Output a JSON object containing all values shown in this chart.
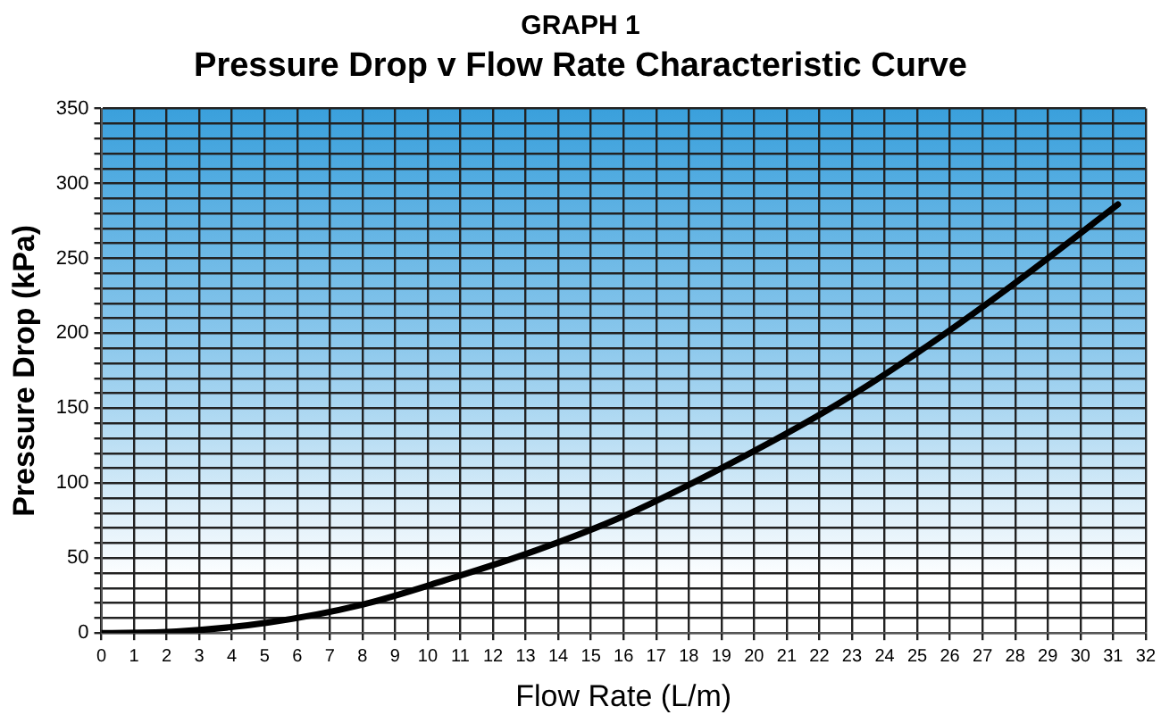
{
  "chart_data": {
    "type": "line",
    "title": "GRAPH 1",
    "subtitle": "Pressure Drop v Flow Rate Characteristic Curve",
    "xlabel": "Flow Rate (L/m)",
    "ylabel": "Pressure Drop (kPa)",
    "series": [
      {
        "color": "#000000",
        "x": [
          0,
          2.3,
          5.1,
          8,
          10.5,
          13.3,
          16,
          19.7,
          22.5,
          25,
          27.9,
          31.15
        ],
        "values": [
          0,
          1,
          7,
          19,
          35,
          55,
          78,
          118,
          152,
          187,
          232,
          286
        ]
      }
    ],
    "xlim": [
      0,
      32
    ],
    "xticks": [
      0,
      1,
      2,
      3,
      4,
      5,
      6,
      7,
      8,
      9,
      10,
      11,
      12,
      13,
      14,
      15,
      16,
      17,
      18,
      19,
      20,
      21,
      22,
      23,
      24,
      25,
      26,
      27,
      28,
      29,
      30,
      31,
      32
    ],
    "ylim": [
      0,
      350
    ],
    "yticks": [
      0,
      {
        "value": 10,
        "label": null
      },
      {
        "value": 20,
        "label": null
      },
      {
        "value": 30,
        "label": null
      },
      {
        "value": 40,
        "label": null
      },
      50,
      {
        "value": 60,
        "label": null
      },
      {
        "value": 70,
        "label": null
      },
      {
        "value": 80,
        "label": null
      },
      {
        "value": 90,
        "label": null
      },
      100,
      {
        "value": 110,
        "label": null
      },
      {
        "value": 120,
        "label": null
      },
      {
        "value": 130,
        "label": null
      },
      {
        "value": 140,
        "label": null
      },
      150,
      {
        "value": 160,
        "label": null
      },
      {
        "value": 170,
        "label": null
      },
      {
        "value": 180,
        "label": null
      },
      {
        "value": 190,
        "label": null
      },
      200,
      {
        "value": 210,
        "label": null
      },
      {
        "value": 220,
        "label": null
      },
      {
        "value": 230,
        "label": null
      },
      {
        "value": 240,
        "label": null
      },
      250,
      {
        "value": 260,
        "label": null
      },
      {
        "value": 270,
        "label": null
      },
      {
        "value": 280,
        "label": null
      },
      {
        "value": 290,
        "label": null
      },
      300,
      {
        "value": 310,
        "label": null
      },
      {
        "value": 320,
        "label": null
      },
      {
        "value": 330,
        "label": null
      },
      {
        "value": 340,
        "label": null
      },
      350
    ],
    "grid": true,
    "legend": false,
    "marker": "none",
    "line_style": "solid"
  }
}
